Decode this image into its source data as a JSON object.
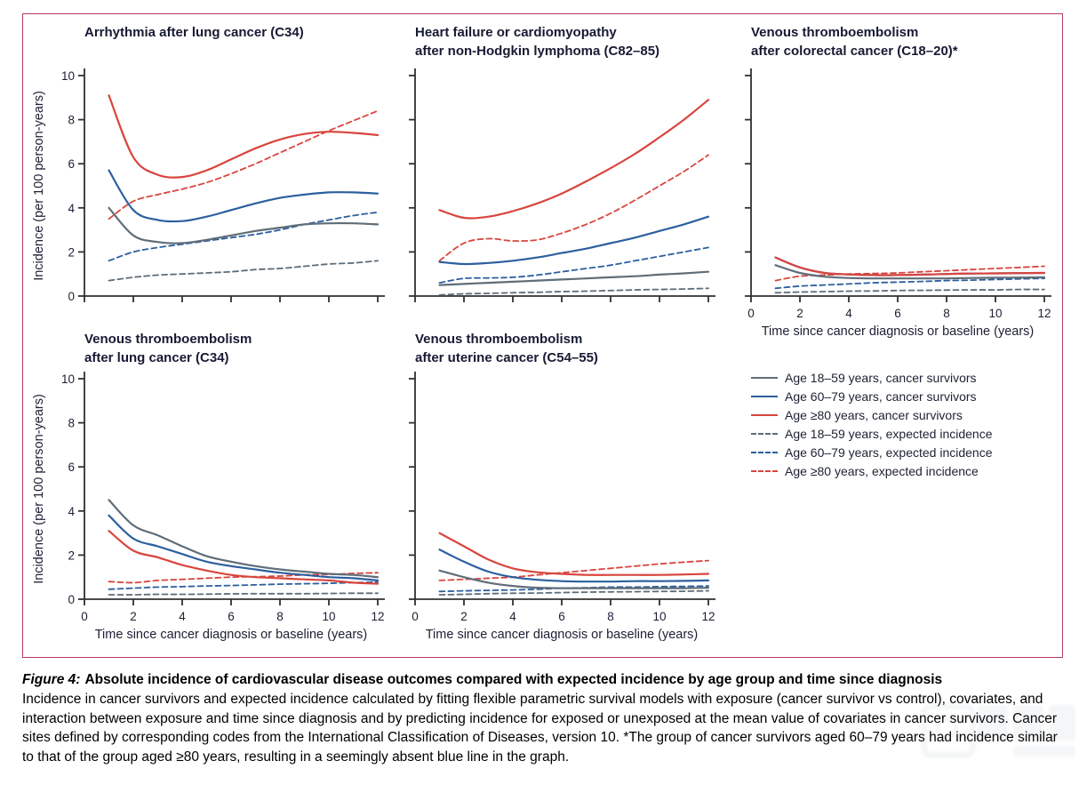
{
  "figure": {
    "caption_label": "Figure 4:",
    "caption_title": "Absolute incidence of cardiovascular disease outcomes compared with expected incidence by age group and time since diagnosis",
    "caption_body": "Incidence in cancer survivors and expected incidence calculated by fitting flexible parametric survival models with exposure (cancer survivor vs control), covariates, and interaction between exposure and time since diagnosis and by predicting incidence for exposed or unexposed at the mean value of covariates in cancer survivors. Cancer sites defined by corresponding codes from the International Classification of Diseases, version 10. *The group of cancer survivors aged 60–79 years had incidence similar to that of the group aged ≥80 years, resulting in a seemingly absent blue line in the graph."
  },
  "colors": {
    "gray": "#5f6d78",
    "blue": "#2c5f9e",
    "red": "#d9453e",
    "axis": "#303030",
    "frame": "#b63a5e",
    "text": "#1d1f33"
  },
  "axes": {
    "x": [
      1,
      2,
      3,
      4,
      5,
      6,
      7,
      8,
      9,
      10,
      11,
      12
    ],
    "x_ticks": [
      0,
      2,
      4,
      6,
      8,
      10,
      12
    ],
    "y_ticks": [
      0,
      2,
      4,
      6,
      8,
      10
    ],
    "xlim": [
      0,
      12
    ],
    "ylim": [
      0,
      10
    ],
    "x_title": "Time since cancer diagnosis or baseline (years)",
    "y_title": "Incidence (per 100 person-years)"
  },
  "legend": {
    "items": [
      {
        "label": "Age 18–59 years, cancer survivors",
        "color": "gray",
        "dash": false
      },
      {
        "label": "Age 60–79 years, cancer survivors",
        "color": "blue",
        "dash": false
      },
      {
        "label": "Age ≥80 years, cancer survivors",
        "color": "red",
        "dash": false
      },
      {
        "label": "Age 18–59 years, expected incidence",
        "color": "gray",
        "dash": true
      },
      {
        "label": "Age 60–79 years, expected incidence",
        "color": "blue",
        "dash": true
      },
      {
        "label": "Age ≥80 years, expected incidence",
        "color": "red",
        "dash": true
      }
    ]
  },
  "chart_data": [
    {
      "type": "line",
      "title": "Arrhythmia after lung cancer (C34)",
      "title_lines": [
        "Arrhythmia after lung cancer (C34)"
      ],
      "y_tick_labels": true,
      "x_tick_labels": false,
      "series": [
        {
          "name": "Age 18–59 years, expected incidence",
          "color": "gray",
          "dash": true,
          "values": [
            0.7,
            0.85,
            0.95,
            1.0,
            1.05,
            1.1,
            1.2,
            1.25,
            1.35,
            1.45,
            1.5,
            1.6
          ]
        },
        {
          "name": "Age 60–79 years, expected incidence",
          "color": "blue",
          "dash": true,
          "values": [
            1.6,
            2.0,
            2.2,
            2.35,
            2.5,
            2.65,
            2.8,
            3.0,
            3.25,
            3.45,
            3.65,
            3.8
          ]
        },
        {
          "name": "Age ≥80 years, expected incidence",
          "color": "red",
          "dash": true,
          "values": [
            3.5,
            4.3,
            4.6,
            4.85,
            5.15,
            5.55,
            6.0,
            6.5,
            7.0,
            7.5,
            7.95,
            8.4
          ]
        },
        {
          "name": "Age 18–59 years, cancer survivors",
          "color": "gray",
          "dash": false,
          "values": [
            4.0,
            2.75,
            2.45,
            2.4,
            2.55,
            2.75,
            2.95,
            3.1,
            3.25,
            3.3,
            3.3,
            3.25
          ]
        },
        {
          "name": "Age 60–79 years, cancer survivors",
          "color": "blue",
          "dash": false,
          "values": [
            5.7,
            3.9,
            3.45,
            3.4,
            3.6,
            3.9,
            4.2,
            4.45,
            4.6,
            4.7,
            4.7,
            4.65
          ]
        },
        {
          "name": "Age ≥80 years, cancer survivors",
          "color": "red",
          "dash": false,
          "values": [
            9.1,
            6.3,
            5.5,
            5.4,
            5.7,
            6.2,
            6.7,
            7.1,
            7.35,
            7.45,
            7.4,
            7.3
          ]
        }
      ]
    },
    {
      "type": "line",
      "title": "Heart failure or cardiomyopathy after non-Hodgkin lymphoma (C82–85)",
      "title_lines": [
        "Heart failure or cardiomyopathy",
        "after non-Hodgkin lymphoma (C82–85)"
      ],
      "y_tick_labels": false,
      "x_tick_labels": false,
      "series": [
        {
          "name": "Age 18–59 years, expected incidence",
          "color": "gray",
          "dash": true,
          "values": [
            0.05,
            0.1,
            0.12,
            0.15,
            0.17,
            0.2,
            0.22,
            0.25,
            0.28,
            0.3,
            0.32,
            0.35
          ]
        },
        {
          "name": "Age 60–79 years, expected incidence",
          "color": "blue",
          "dash": true,
          "values": [
            0.6,
            0.8,
            0.82,
            0.85,
            0.95,
            1.1,
            1.25,
            1.4,
            1.6,
            1.8,
            2.0,
            2.2
          ]
        },
        {
          "name": "Age ≥80 years, expected incidence",
          "color": "red",
          "dash": true,
          "values": [
            1.6,
            2.4,
            2.6,
            2.5,
            2.55,
            2.85,
            3.25,
            3.75,
            4.35,
            5.0,
            5.65,
            6.4
          ]
        },
        {
          "name": "Age 18–59 years, cancer survivors",
          "color": "gray",
          "dash": false,
          "values": [
            0.5,
            0.55,
            0.6,
            0.65,
            0.7,
            0.75,
            0.8,
            0.85,
            0.9,
            0.97,
            1.03,
            1.1
          ]
        },
        {
          "name": "Age 60–79 years, cancer survivors",
          "color": "blue",
          "dash": false,
          "values": [
            1.55,
            1.45,
            1.5,
            1.6,
            1.75,
            1.95,
            2.15,
            2.4,
            2.65,
            2.95,
            3.25,
            3.6
          ]
        },
        {
          "name": "Age ≥80 years, cancer survivors",
          "color": "red",
          "dash": false,
          "values": [
            3.9,
            3.55,
            3.6,
            3.85,
            4.2,
            4.65,
            5.2,
            5.8,
            6.45,
            7.2,
            8.0,
            8.9
          ]
        }
      ]
    },
    {
      "type": "line",
      "title": "Venous thromboembolism after colorectal cancer (C18–20)*",
      "title_lines": [
        "Venous thromboembolism",
        "after colorectal cancer (C18–20)*"
      ],
      "y_tick_labels": false,
      "x_tick_labels": true,
      "series": [
        {
          "name": "Age 18–59 years, expected incidence",
          "color": "gray",
          "dash": true,
          "values": [
            0.15,
            0.18,
            0.2,
            0.22,
            0.23,
            0.25,
            0.26,
            0.27,
            0.28,
            0.28,
            0.3,
            0.3
          ]
        },
        {
          "name": "Age 60–79 years, expected incidence",
          "color": "blue",
          "dash": true,
          "values": [
            0.35,
            0.45,
            0.5,
            0.55,
            0.6,
            0.63,
            0.66,
            0.7,
            0.72,
            0.75,
            0.78,
            0.8
          ]
        },
        {
          "name": "Age ≥80 years, expected incidence",
          "color": "red",
          "dash": true,
          "values": [
            0.7,
            0.9,
            0.95,
            1.0,
            1.02,
            1.05,
            1.1,
            1.15,
            1.2,
            1.25,
            1.3,
            1.35
          ]
        },
        {
          "name": "Age 18–59 years, cancer survivors",
          "color": "gray",
          "dash": false,
          "values": [
            1.4,
            1.05,
            0.88,
            0.82,
            0.8,
            0.8,
            0.8,
            0.8,
            0.82,
            0.83,
            0.84,
            0.85
          ]
        },
        {
          "name": "Age 60–79 years, cancer survivors (hidden behind ≥80 line)",
          "color": "blue",
          "dash": false,
          "values": [
            1.75,
            1.3,
            1.05,
            0.98,
            0.95,
            0.95,
            0.97,
            1.0,
            1.02,
            1.03,
            1.04,
            1.05
          ]
        },
        {
          "name": "Age ≥80 years, cancer survivors",
          "color": "red",
          "dash": false,
          "values": [
            1.75,
            1.3,
            1.05,
            0.98,
            0.95,
            0.95,
            0.97,
            1.0,
            1.02,
            1.03,
            1.04,
            1.05
          ]
        }
      ]
    },
    {
      "type": "line",
      "title": "Venous thromboembolism after lung cancer (C34)",
      "title_lines": [
        "Venous thromboembolism",
        "after lung cancer (C34)"
      ],
      "y_tick_labels": true,
      "x_tick_labels": true,
      "series": [
        {
          "name": "Age 18–59 years, expected incidence",
          "color": "gray",
          "dash": true,
          "values": [
            0.2,
            0.2,
            0.22,
            0.22,
            0.23,
            0.24,
            0.25,
            0.25,
            0.25,
            0.26,
            0.27,
            0.27
          ]
        },
        {
          "name": "Age 60–79 years, expected incidence",
          "color": "blue",
          "dash": true,
          "values": [
            0.45,
            0.5,
            0.55,
            0.57,
            0.6,
            0.62,
            0.65,
            0.68,
            0.7,
            0.72,
            0.75,
            0.78
          ]
        },
        {
          "name": "Age ≥80 years, expected incidence",
          "color": "red",
          "dash": true,
          "values": [
            0.8,
            0.75,
            0.85,
            0.9,
            0.95,
            1.0,
            1.02,
            1.05,
            1.1,
            1.12,
            1.17,
            1.2
          ]
        },
        {
          "name": "Age 18–59 years, cancer survivors",
          "color": "gray",
          "dash": false,
          "values": [
            4.5,
            3.35,
            2.9,
            2.4,
            1.95,
            1.7,
            1.5,
            1.35,
            1.25,
            1.15,
            1.1,
            1.0
          ]
        },
        {
          "name": "Age 60–79 years, cancer survivors",
          "color": "blue",
          "dash": false,
          "values": [
            3.8,
            2.75,
            2.4,
            2.05,
            1.7,
            1.5,
            1.35,
            1.2,
            1.1,
            1.0,
            0.95,
            0.85
          ]
        },
        {
          "name": "Age ≥80 years, cancer survivors",
          "color": "red",
          "dash": false,
          "values": [
            3.1,
            2.2,
            1.9,
            1.55,
            1.3,
            1.1,
            1.0,
            0.95,
            0.9,
            0.85,
            0.75,
            0.7
          ]
        }
      ]
    },
    {
      "type": "line",
      "title": "Venous thromboembolism after uterine cancer (C54–55)",
      "title_lines": [
        "Venous thromboembolism",
        "after uterine cancer (C54–55)"
      ],
      "y_tick_labels": false,
      "x_tick_labels": true,
      "series": [
        {
          "name": "Age 18–59 years, expected incidence",
          "color": "gray",
          "dash": true,
          "values": [
            0.2,
            0.22,
            0.25,
            0.27,
            0.28,
            0.3,
            0.32,
            0.33,
            0.34,
            0.35,
            0.36,
            0.38
          ]
        },
        {
          "name": "Age 60–79 years, expected incidence",
          "color": "blue",
          "dash": true,
          "values": [
            0.35,
            0.38,
            0.4,
            0.42,
            0.45,
            0.5,
            0.52,
            0.55,
            0.55,
            0.57,
            0.58,
            0.6
          ]
        },
        {
          "name": "Age ≥80 years, expected incidence",
          "color": "red",
          "dash": true,
          "values": [
            0.85,
            0.9,
            0.95,
            1.0,
            1.1,
            1.2,
            1.3,
            1.4,
            1.5,
            1.6,
            1.68,
            1.75
          ]
        },
        {
          "name": "Age 18–59 years, cancer survivors",
          "color": "gray",
          "dash": false,
          "values": [
            1.3,
            1.0,
            0.75,
            0.6,
            0.52,
            0.5,
            0.5,
            0.5,
            0.5,
            0.5,
            0.5,
            0.52
          ]
        },
        {
          "name": "Age 60–79 years, cancer survivors",
          "color": "blue",
          "dash": false,
          "values": [
            2.25,
            1.7,
            1.25,
            1.0,
            0.88,
            0.82,
            0.8,
            0.8,
            0.82,
            0.82,
            0.83,
            0.85
          ]
        },
        {
          "name": "Age ≥80 years, cancer survivors",
          "color": "red",
          "dash": false,
          "values": [
            3.0,
            2.4,
            1.8,
            1.4,
            1.22,
            1.15,
            1.1,
            1.1,
            1.1,
            1.1,
            1.12,
            1.15
          ]
        }
      ]
    }
  ]
}
